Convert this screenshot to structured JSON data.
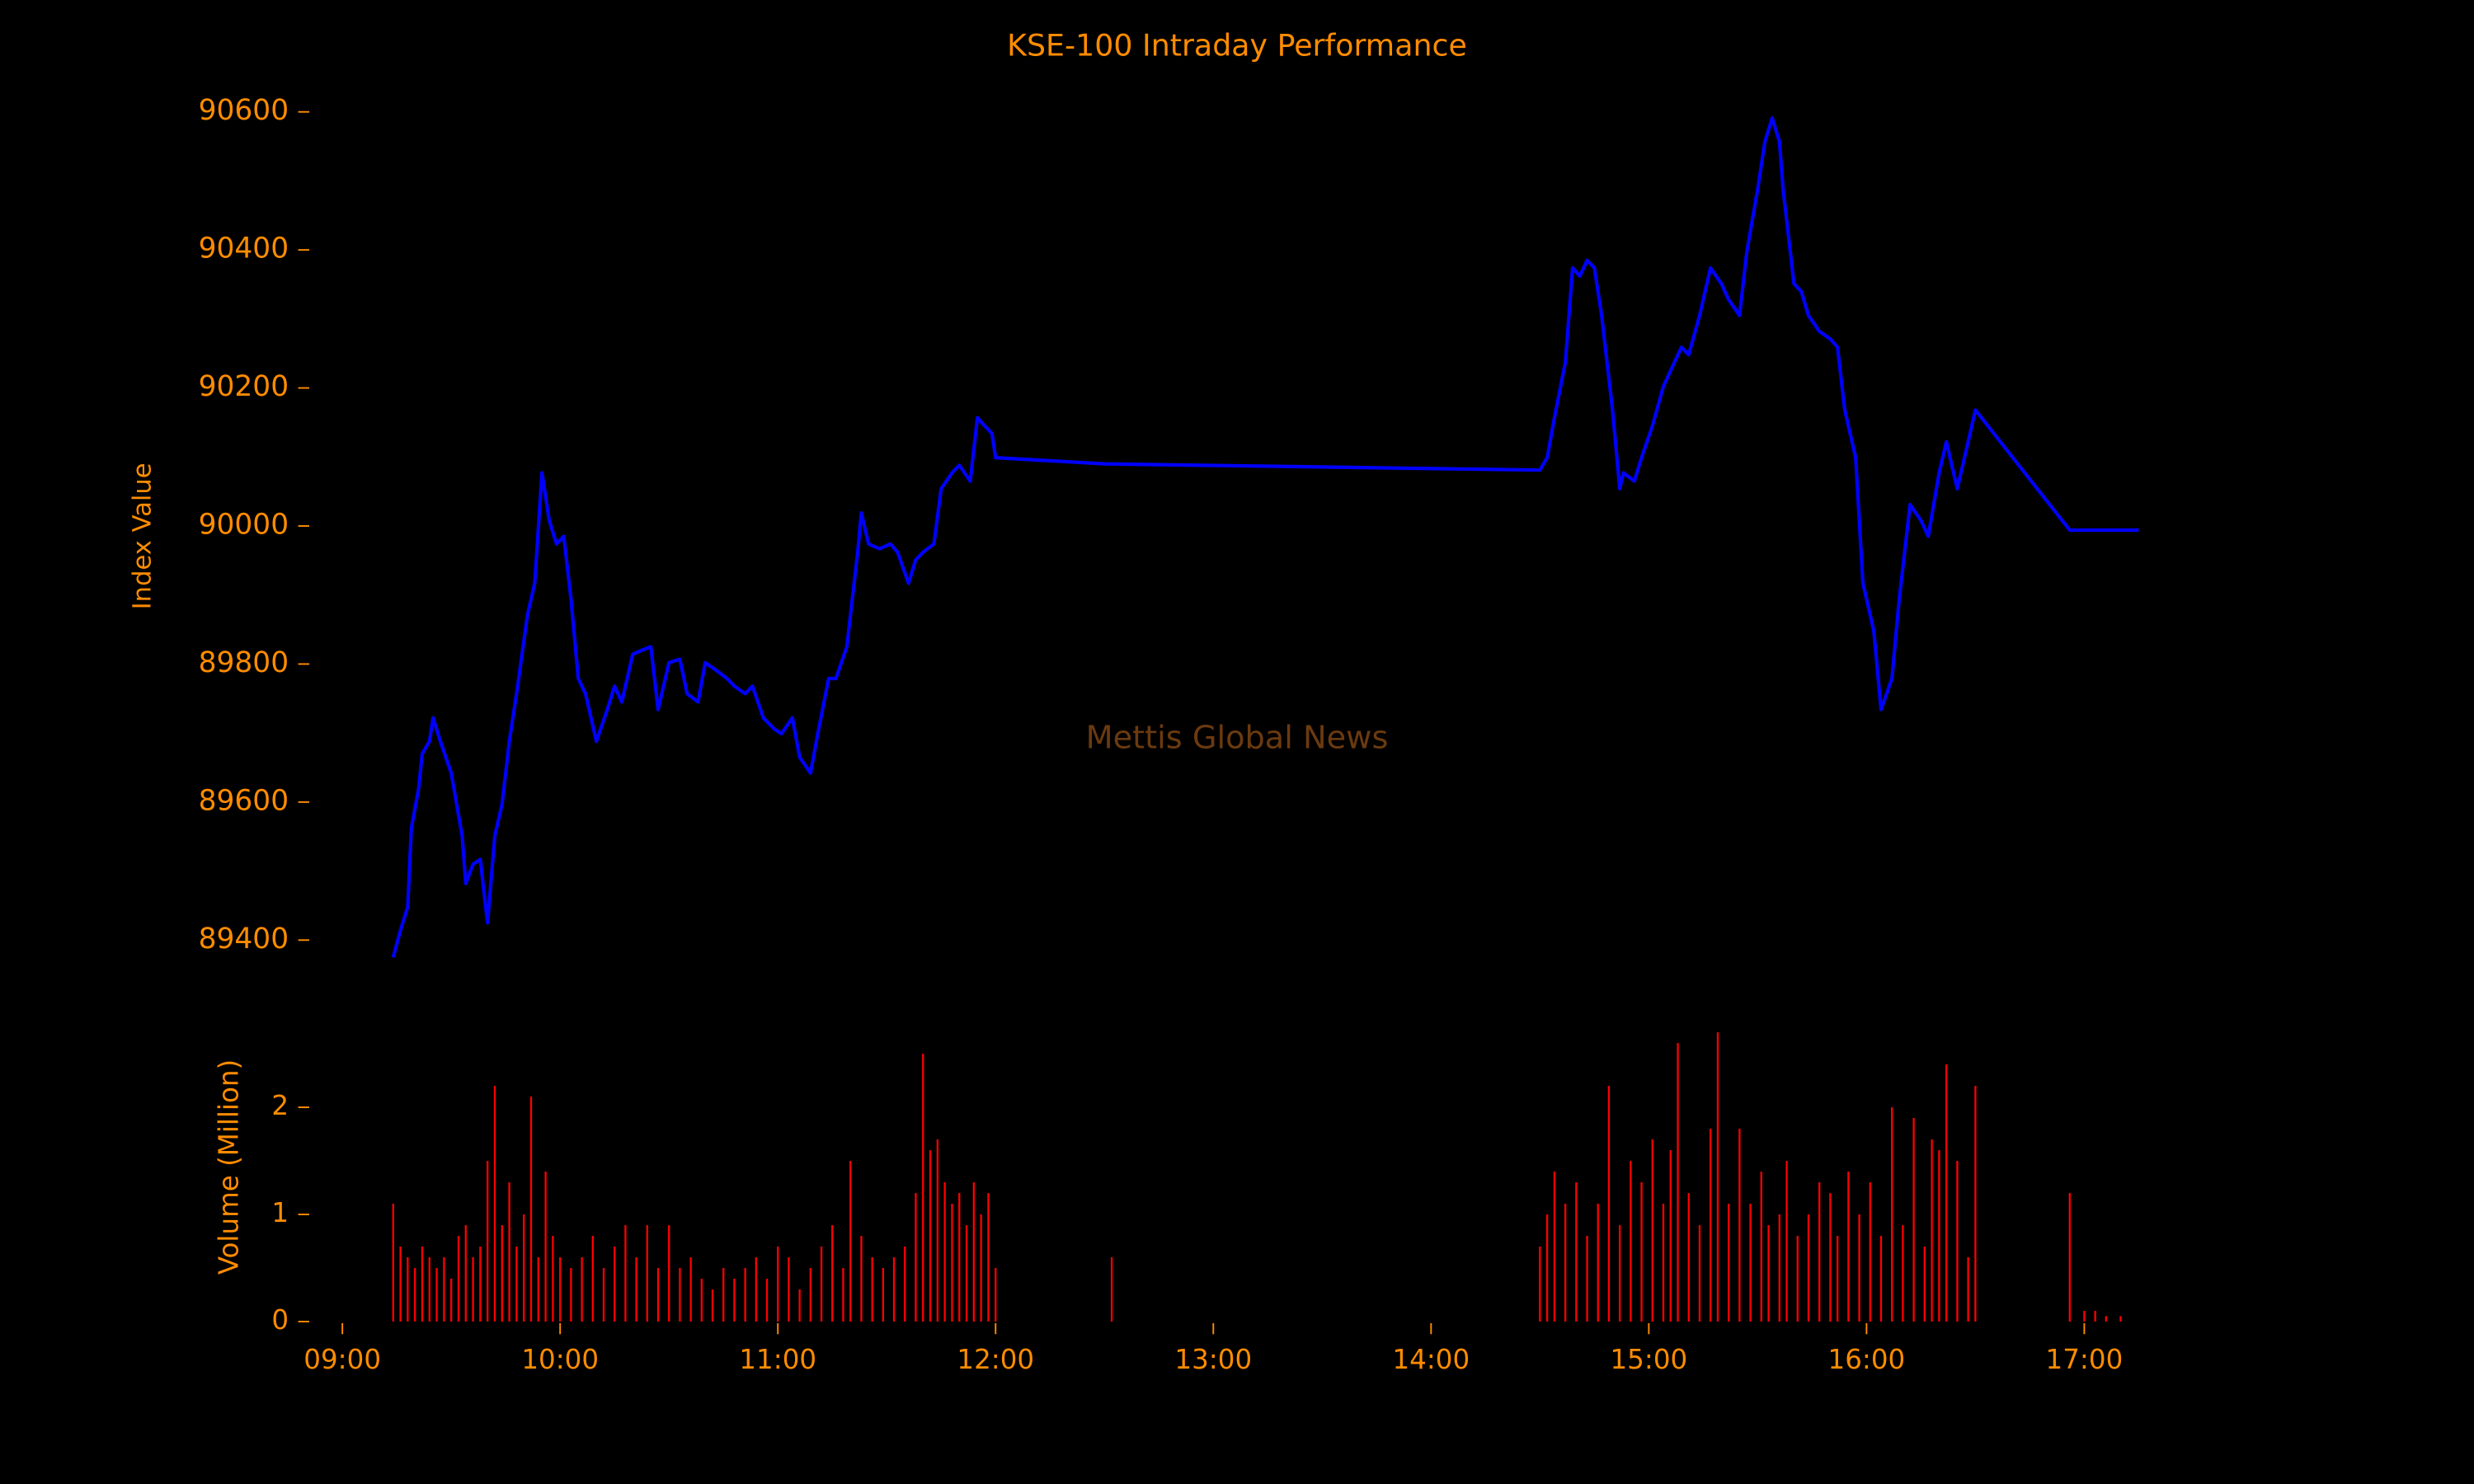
{
  "chart_data": [
    {
      "type": "line",
      "title": "KSE-100 Intraday Performance",
      "ylabel": "Index Value",
      "annotation": "Mettis Global News",
      "color": "#0000ff",
      "xlim": [
        "08:50",
        "17:25"
      ],
      "ylim": [
        89350,
        90625
      ],
      "yticks": [
        89400,
        89600,
        89800,
        90000,
        90200,
        90400,
        90600
      ],
      "x": [
        "09:14",
        "09:16",
        "09:18",
        "09:19",
        "09:21",
        "09:22",
        "09:24",
        "09:25",
        "09:27",
        "09:30",
        "09:33",
        "09:34",
        "09:36",
        "09:38",
        "09:40",
        "09:42",
        "09:44",
        "09:46",
        "09:48",
        "09:51",
        "09:53",
        "09:55",
        "09:57",
        "09:59",
        "10:01",
        "10:03",
        "10:05",
        "10:07",
        "10:10",
        "10:13",
        "10:15",
        "10:17",
        "10:20",
        "10:23",
        "10:25",
        "10:27",
        "10:30",
        "10:33",
        "10:35",
        "10:38",
        "10:40",
        "10:43",
        "10:46",
        "10:48",
        "10:51",
        "10:53",
        "10:56",
        "10:59",
        "11:01",
        "11:04",
        "11:06",
        "11:09",
        "11:11",
        "11:14",
        "11:16",
        "11:19",
        "11:22",
        "11:23",
        "11:25",
        "11:28",
        "11:31",
        "11:33",
        "11:36",
        "11:38",
        "11:40",
        "11:43",
        "11:45",
        "11:48",
        "11:50",
        "11:53",
        "11:55",
        "11:57",
        "11:59",
        "12:00",
        "12:30",
        "14:30",
        "14:32",
        "14:34",
        "14:37",
        "14:39",
        "14:41",
        "14:43",
        "14:45",
        "14:47",
        "14:50",
        "14:52",
        "14:53",
        "14:56",
        "14:58",
        "15:01",
        "15:04",
        "15:06",
        "15:09",
        "15:11",
        "15:14",
        "15:17",
        "15:20",
        "15:22",
        "15:25",
        "15:27",
        "15:30",
        "15:32",
        "15:34",
        "15:36",
        "15:37",
        "15:40",
        "15:42",
        "15:44",
        "15:47",
        "15:50",
        "15:52",
        "15:54",
        "15:57",
        "15:59",
        "16:02",
        "16:04",
        "16:07",
        "16:09",
        "16:12",
        "16:15",
        "16:17",
        "16:20",
        "16:22",
        "16:25",
        "16:28",
        "16:30",
        "16:56",
        "17:15"
      ],
      "values": [
        89375,
        89414,
        89448,
        89562,
        89619,
        89670,
        89688,
        89722,
        89688,
        89642,
        89551,
        89482,
        89510,
        89517,
        89425,
        89551,
        89597,
        89688,
        89757,
        89871,
        89917,
        90077,
        90008,
        89974,
        89985,
        89894,
        89779,
        89757,
        89688,
        89734,
        89768,
        89745,
        89814,
        89821,
        89825,
        89734,
        89802,
        89807,
        89757,
        89745,
        89802,
        89791,
        89779,
        89768,
        89757,
        89768,
        89722,
        89706,
        89699,
        89722,
        89665,
        89642,
        89699,
        89779,
        89779,
        89825,
        89962,
        90019,
        89974,
        89967,
        89974,
        89962,
        89917,
        89951,
        89962,
        89974,
        90054,
        90077,
        90088,
        90065,
        90157,
        90145,
        90134,
        90099,
        90090,
        90081,
        90099,
        90157,
        90237,
        90374,
        90362,
        90385,
        90374,
        90305,
        90168,
        90054,
        90077,
        90065,
        90099,
        90145,
        90202,
        90225,
        90259,
        90248,
        90305,
        90374,
        90351,
        90328,
        90305,
        90397,
        90488,
        90557,
        90591,
        90557,
        90488,
        90351,
        90340,
        90305,
        90282,
        90271,
        90259,
        90168,
        90099,
        89917,
        89848,
        89734,
        89779,
        89894,
        90031,
        90008,
        89985,
        90077,
        90122,
        90054,
        90122,
        90168,
        89994,
        89994
      ]
    },
    {
      "type": "bar",
      "ylabel": "Volume (Million)",
      "color": "#ff0000",
      "xlim": [
        "08:50",
        "17:25"
      ],
      "ylim": [
        0,
        2.9
      ],
      "yticks": [
        0,
        1,
        2
      ],
      "xticks": [
        "09:00",
        "10:00",
        "11:00",
        "12:00",
        "13:00",
        "14:00",
        "15:00",
        "16:00",
        "17:00"
      ],
      "x": [
        "09:14",
        "09:16",
        "09:18",
        "09:20",
        "09:22",
        "09:24",
        "09:26",
        "09:28",
        "09:30",
        "09:32",
        "09:34",
        "09:36",
        "09:38",
        "09:40",
        "09:42",
        "09:44",
        "09:46",
        "09:48",
        "09:50",
        "09:52",
        "09:54",
        "09:56",
        "09:58",
        "10:00",
        "10:03",
        "10:06",
        "10:09",
        "10:12",
        "10:15",
        "10:18",
        "10:21",
        "10:24",
        "10:27",
        "10:30",
        "10:33",
        "10:36",
        "10:39",
        "10:42",
        "10:45",
        "10:48",
        "10:51",
        "10:54",
        "10:57",
        "11:00",
        "11:03",
        "11:06",
        "11:09",
        "11:12",
        "11:15",
        "11:18",
        "11:20",
        "11:23",
        "11:26",
        "11:29",
        "11:32",
        "11:35",
        "11:38",
        "11:40",
        "11:42",
        "11:44",
        "11:46",
        "11:48",
        "11:50",
        "11:52",
        "11:54",
        "11:56",
        "11:58",
        "12:00",
        "12:32",
        "14:30",
        "14:32",
        "14:34",
        "14:37",
        "14:40",
        "14:43",
        "14:46",
        "14:49",
        "14:52",
        "14:55",
        "14:58",
        "15:01",
        "15:04",
        "15:06",
        "15:08",
        "15:11",
        "15:14",
        "15:17",
        "15:19",
        "15:22",
        "15:25",
        "15:28",
        "15:31",
        "15:33",
        "15:36",
        "15:38",
        "15:41",
        "15:44",
        "15:47",
        "15:50",
        "15:52",
        "15:55",
        "15:58",
        "16:01",
        "16:04",
        "16:07",
        "16:10",
        "16:13",
        "16:16",
        "16:18",
        "16:20",
        "16:22",
        "16:25",
        "16:28",
        "16:30",
        "16:56",
        "17:00",
        "17:03",
        "17:06",
        "17:10"
      ],
      "values": [
        1.1,
        0.7,
        0.6,
        0.5,
        0.7,
        0.6,
        0.5,
        0.6,
        0.4,
        0.8,
        0.9,
        0.6,
        0.7,
        1.5,
        2.2,
        0.9,
        1.3,
        0.7,
        1.0,
        2.1,
        0.6,
        1.4,
        0.8,
        0.6,
        0.5,
        0.6,
        0.8,
        0.5,
        0.7,
        0.9,
        0.6,
        0.9,
        0.5,
        0.9,
        0.5,
        0.6,
        0.4,
        0.3,
        0.5,
        0.4,
        0.5,
        0.6,
        0.4,
        0.7,
        0.6,
        0.3,
        0.5,
        0.7,
        0.9,
        0.5,
        1.5,
        0.8,
        0.6,
        0.5,
        0.6,
        0.7,
        1.2,
        2.5,
        1.6,
        1.7,
        1.3,
        1.1,
        1.2,
        0.9,
        1.3,
        1.0,
        1.2,
        0.5,
        0.6,
        0.7,
        1.0,
        1.4,
        1.1,
        1.3,
        0.8,
        1.1,
        2.2,
        0.9,
        1.5,
        1.3,
        1.7,
        1.1,
        1.6,
        2.6,
        1.2,
        0.9,
        1.8,
        2.7,
        1.1,
        1.8,
        1.1,
        1.4,
        0.9,
        1.0,
        1.5,
        0.8,
        1.0,
        1.3,
        1.2,
        0.8,
        1.4,
        1.0,
        1.3,
        0.8,
        2.0,
        0.9,
        1.9,
        0.7,
        1.7,
        1.6,
        2.4,
        1.5,
        0.6,
        2.2,
        1.2,
        0.1,
        0.1,
        0.05,
        0.05
      ]
    }
  ]
}
